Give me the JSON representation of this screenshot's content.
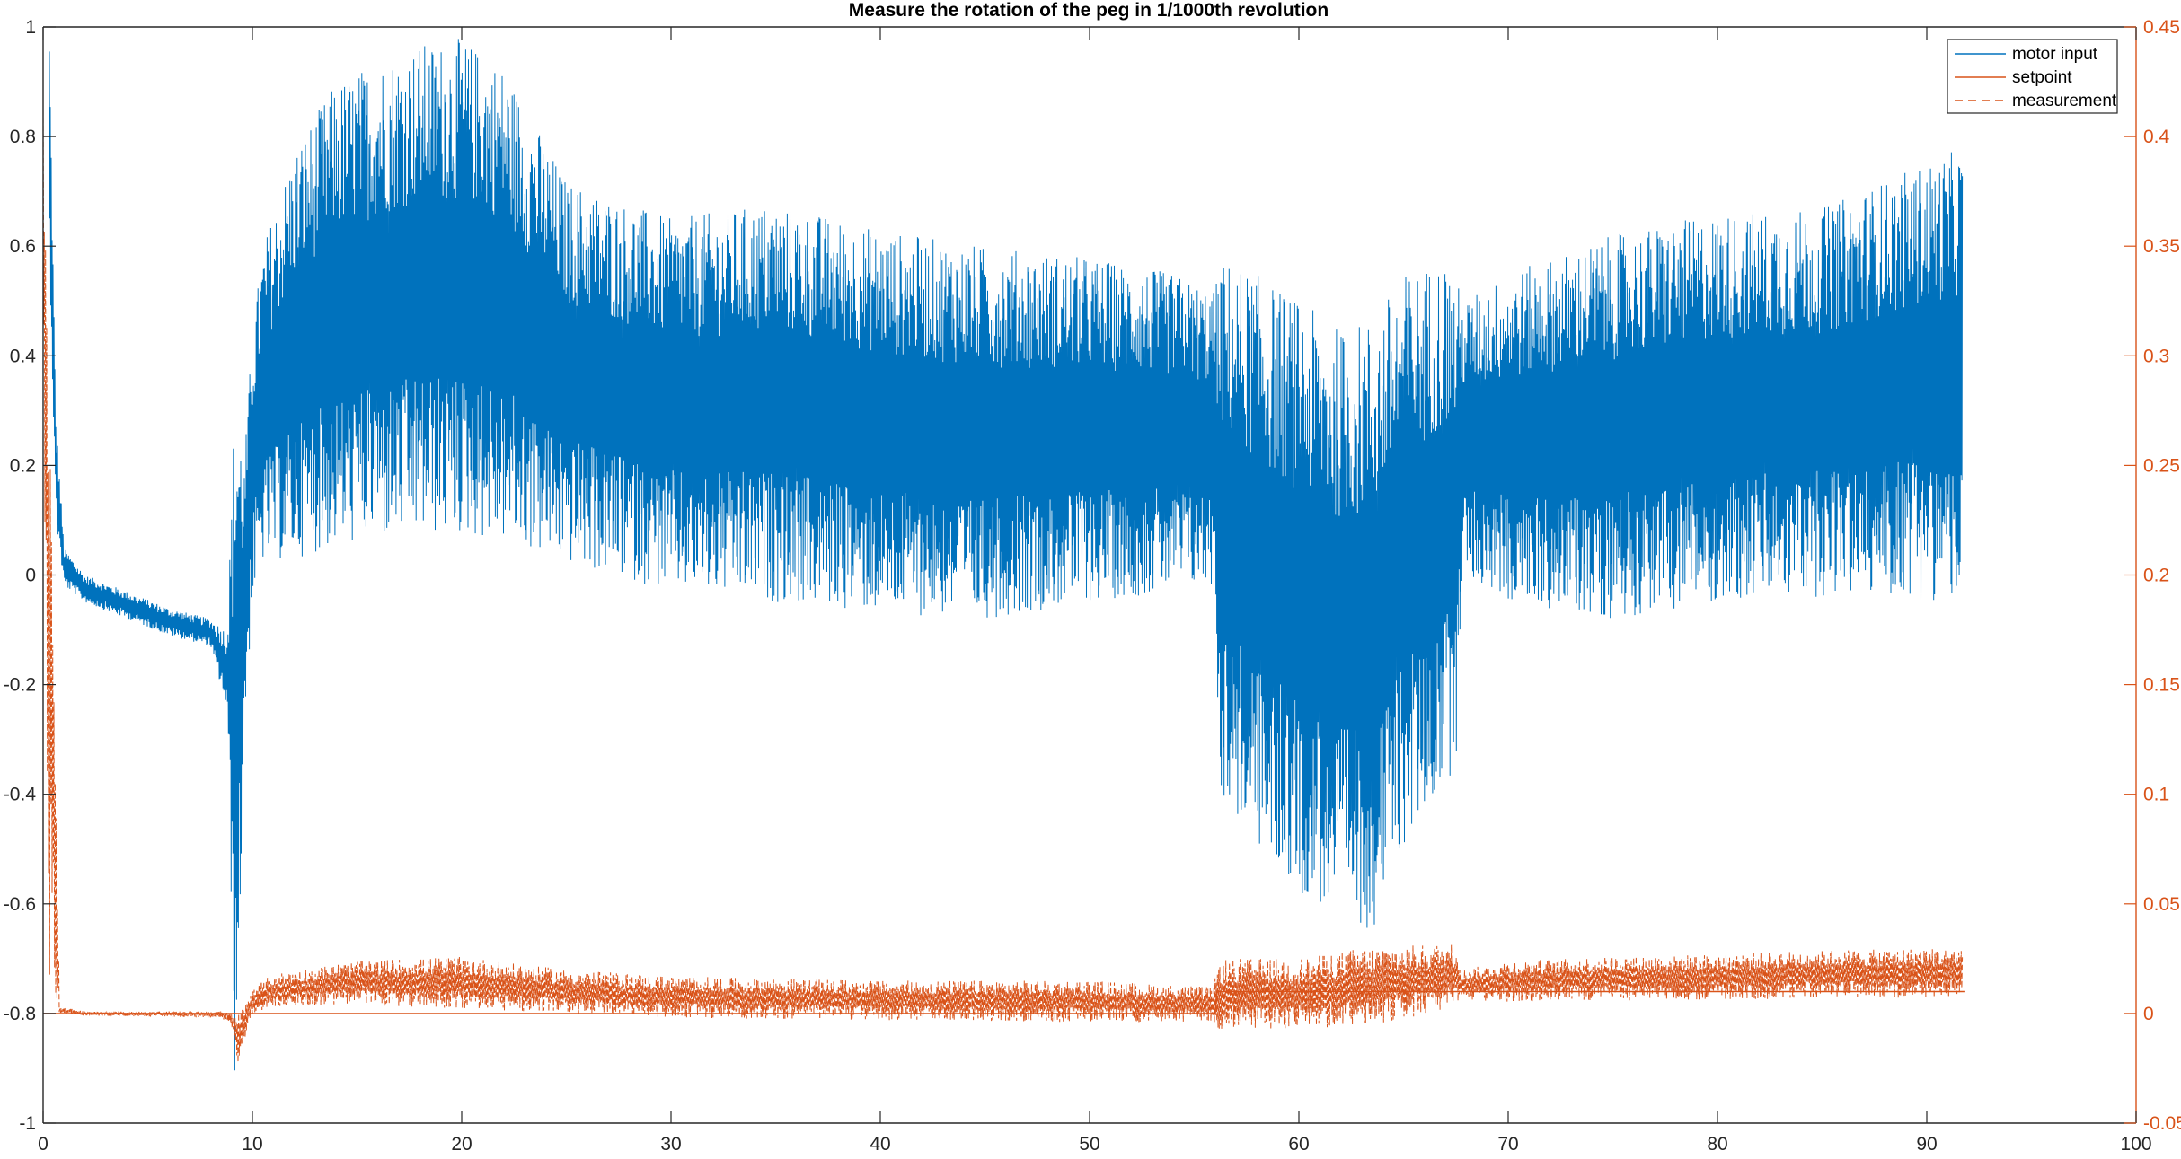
{
  "chart_data": {
    "type": "line",
    "title": "Measure the rotation of the peg in 1/1000th revolution",
    "xlabel": "",
    "ylabel_left": "",
    "ylabel_right": "",
    "xlim": [
      0,
      100
    ],
    "ylim_left": [
      -1,
      1
    ],
    "ylim_right": [
      -0.05,
      0.45
    ],
    "x_ticks": [
      "0",
      "10",
      "20",
      "30",
      "40",
      "50",
      "60",
      "70",
      "80",
      "90",
      "100"
    ],
    "y_left_ticks": [
      "-1",
      "-0.8",
      "-0.6",
      "-0.4",
      "-0.2",
      "0",
      "0.2",
      "0.4",
      "0.6",
      "0.8",
      "1"
    ],
    "y_right_ticks": [
      "-0.05",
      "0",
      "0.05",
      "0.1",
      "0.15",
      "0.2",
      "0.25",
      "0.3",
      "0.35",
      "0.4",
      "0.45"
    ],
    "grid": false,
    "legend_position": "top-right",
    "x_end": 91.8,
    "series": [
      {
        "name": "motor input",
        "axis": "left",
        "style": "solid",
        "color": "#0072BD",
        "envelope": {
          "x": [
            0.3,
            0.6,
            1,
            2,
            4,
            6,
            8,
            8.8,
            9.2,
            9.6,
            10,
            10.5,
            12,
            14,
            16,
            18,
            20,
            22,
            25,
            30,
            35,
            40,
            45,
            50,
            54,
            56,
            56.2,
            58,
            60,
            62,
            63.5,
            65,
            67,
            67.5,
            67.8,
            70,
            75,
            80,
            85,
            88,
            91.7
          ],
          "upper": [
            1.0,
            0.3,
            0.05,
            0.0,
            -0.03,
            -0.06,
            -0.08,
            -0.1,
            0.39,
            0.2,
            0.45,
            0.6,
            0.78,
            0.9,
            0.94,
            0.97,
            0.98,
            0.93,
            0.72,
            0.65,
            0.68,
            0.63,
            0.6,
            0.58,
            0.55,
            0.52,
            0.58,
            0.55,
            0.5,
            0.45,
            0.47,
            0.55,
            0.58,
            0.55,
            0.5,
            0.55,
            0.62,
            0.66,
            0.67,
            0.72,
            0.78
          ],
          "lower": [
            0.6,
            0.1,
            -0.02,
            -0.05,
            -0.08,
            -0.11,
            -0.13,
            -0.25,
            -1.0,
            -0.3,
            -0.05,
            0.02,
            0.03,
            0.05,
            0.06,
            0.07,
            0.07,
            0.06,
            0.02,
            -0.03,
            -0.05,
            -0.07,
            -0.08,
            -0.05,
            -0.03,
            -0.02,
            -0.4,
            -0.5,
            -0.58,
            -0.63,
            -0.65,
            -0.5,
            -0.38,
            -0.35,
            0.0,
            -0.05,
            -0.08,
            -0.05,
            -0.04,
            -0.04,
            -0.05
          ]
        }
      },
      {
        "name": "setpoint",
        "axis": "right",
        "style": "solid",
        "color": "#D95319",
        "x": [
          0,
          56,
          56.1,
          91.8
        ],
        "y": [
          0.0,
          0.0,
          0.01,
          0.01
        ]
      },
      {
        "name": "measurement",
        "axis": "right",
        "style": "dashed",
        "color": "#D95319",
        "envelope": {
          "x": [
            0,
            0.3,
            0.8,
            2,
            8.5,
            9.0,
            9.3,
            9.7,
            10,
            11,
            15,
            20,
            25,
            30,
            40,
            50,
            55.9,
            56.2,
            60,
            63,
            67.5,
            67.8,
            70,
            75,
            80,
            85,
            91.7
          ],
          "upper": [
            0.43,
            0.3,
            0.003,
            0.001,
            0.001,
            0.0,
            0.0,
            0.005,
            0.012,
            0.018,
            0.024,
            0.026,
            0.02,
            0.017,
            0.015,
            0.015,
            0.012,
            0.025,
            0.025,
            0.03,
            0.032,
            0.02,
            0.024,
            0.026,
            0.027,
            0.029,
            0.03
          ],
          "lower": [
            0.3,
            0.01,
            0.0,
            -0.001,
            -0.002,
            -0.005,
            -0.026,
            -0.01,
            0.0,
            0.003,
            0.004,
            0.002,
            0.0,
            -0.002,
            -0.003,
            -0.004,
            -0.004,
            -0.008,
            -0.007,
            -0.006,
            0.002,
            0.006,
            0.005,
            0.006,
            0.006,
            0.007,
            0.007
          ]
        }
      }
    ]
  }
}
